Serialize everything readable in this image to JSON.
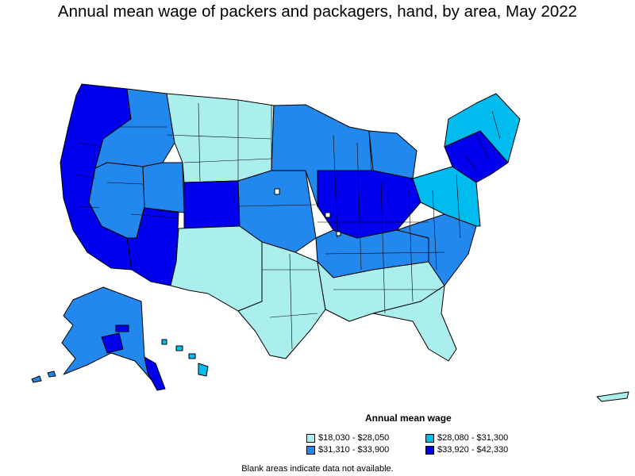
{
  "title": "Annual mean wage of packers and packagers, hand, by area, May 2022",
  "legend": {
    "title": "Annual mean wage",
    "items": [
      {
        "label": "$18,030 - $28,050",
        "color": "#aaeeee"
      },
      {
        "label": "$28,080 - $31,300",
        "color": "#00bbee"
      },
      {
        "label": "$31,310 - $33,900",
        "color": "#2288ee"
      },
      {
        "label": "$33,920 - $42,330",
        "color": "#0000ee"
      }
    ]
  },
  "footnote": "Blank areas indicate data not available.",
  "colors": {
    "tier1": "#aaeeee",
    "tier2": "#00bbee",
    "tier3": "#2288ee",
    "tier4": "#0000ee",
    "no_data": "#ffffff",
    "border": "#000000"
  }
}
